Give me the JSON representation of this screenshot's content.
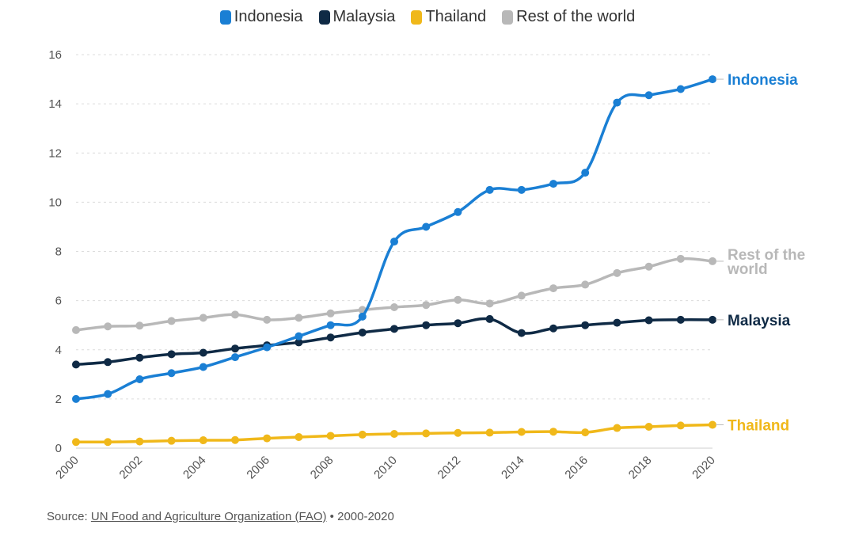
{
  "chart_data": {
    "type": "line",
    "x": [
      2000,
      2001,
      2002,
      2003,
      2004,
      2005,
      2006,
      2007,
      2008,
      2009,
      2010,
      2011,
      2012,
      2013,
      2014,
      2015,
      2016,
      2017,
      2018,
      2019,
      2020
    ],
    "x_ticks": [
      "2000",
      "2002",
      "2004",
      "2006",
      "2008",
      "2010",
      "2012",
      "2014",
      "2016",
      "2018",
      "2020"
    ],
    "y_ticks": [
      "0",
      "2",
      "4",
      "6",
      "8",
      "10",
      "12",
      "14",
      "16"
    ],
    "ylim": [
      0,
      16
    ],
    "grid": true,
    "legend_position": "top-center",
    "series": [
      {
        "name": "Indonesia",
        "label": "Indonesia",
        "color": "#1a7fd4",
        "values": [
          2.0,
          2.2,
          2.8,
          3.05,
          3.3,
          3.7,
          4.1,
          4.55,
          5.0,
          5.35,
          8.4,
          9.0,
          9.6,
          10.5,
          10.5,
          10.75,
          11.2,
          14.05,
          14.35,
          14.6,
          15.0
        ]
      },
      {
        "name": "Malaysia",
        "label": "Malaysia",
        "color": "#0f2a45",
        "values": [
          3.4,
          3.5,
          3.68,
          3.82,
          3.88,
          4.05,
          4.18,
          4.3,
          4.5,
          4.7,
          4.85,
          5.0,
          5.08,
          5.25,
          4.68,
          4.87,
          5.0,
          5.1,
          5.2,
          5.22,
          5.22
        ]
      },
      {
        "name": "Thailand",
        "label": "Thailand",
        "color": "#f0b81a",
        "values": [
          0.25,
          0.25,
          0.27,
          0.3,
          0.32,
          0.33,
          0.4,
          0.45,
          0.5,
          0.55,
          0.58,
          0.6,
          0.62,
          0.63,
          0.66,
          0.67,
          0.64,
          0.82,
          0.87,
          0.92,
          0.95
        ]
      },
      {
        "name": "Rest of the world",
        "label": "Rest of the\nworld",
        "color": "#b8b8b8",
        "values": [
          4.8,
          4.95,
          4.98,
          5.17,
          5.3,
          5.43,
          5.22,
          5.3,
          5.48,
          5.62,
          5.73,
          5.82,
          6.03,
          5.88,
          6.2,
          6.5,
          6.65,
          7.12,
          7.38,
          7.7,
          7.6
        ]
      }
    ]
  },
  "source": {
    "prefix": "Source: ",
    "link_text": "UN Food and Agriculture Organization (FAO)",
    "suffix": " • 2000-2020"
  }
}
